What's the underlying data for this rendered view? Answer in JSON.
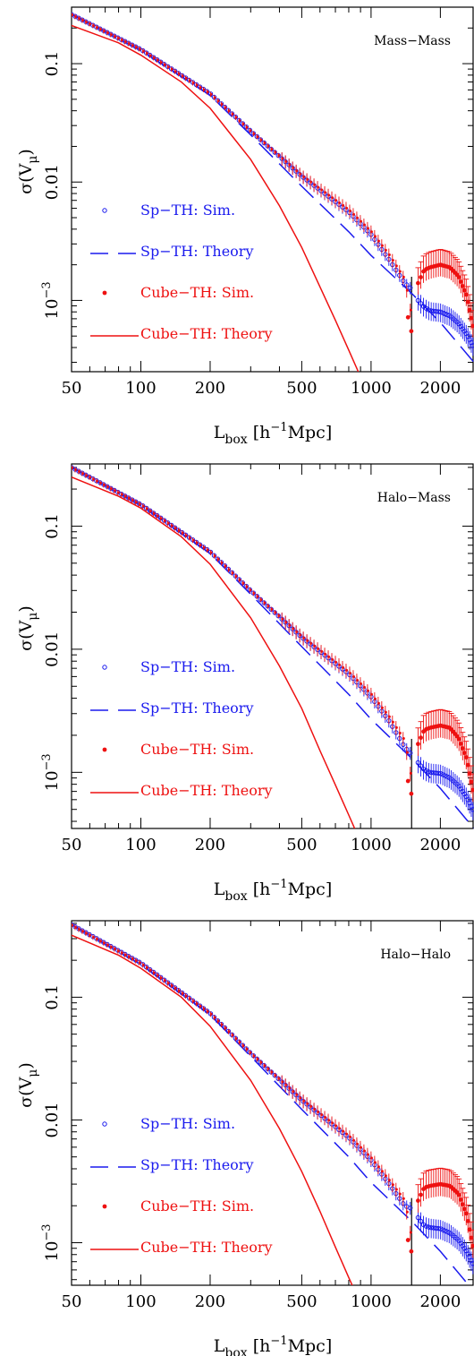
{
  "figure": {
    "xlabel": {
      "main": "L",
      "sub": "box",
      "after1": " [h",
      "sup": "−1",
      "after2": "Mpc]"
    },
    "ylabel": {
      "main": "σ(V",
      "sub": "μ",
      "after": ")"
    },
    "x_ticks": [
      50,
      100,
      200,
      500,
      1000,
      2000
    ],
    "x_tick_labels": [
      "50",
      "100",
      "200",
      "500",
      "1000",
      "2000"
    ],
    "y_tick_labels": {
      "p0.1": "0.1",
      "p0.01": "0.01",
      "p1e-3": {
        "base": "10",
        "exp": "−3"
      }
    },
    "colors": {
      "sp": "#1a1aee",
      "cube": "#ee1111",
      "line": "#000000"
    },
    "legend": [
      {
        "label": "Sp−TH: Sim.",
        "marker": "open-circle",
        "color": "#1a1aee"
      },
      {
        "label": "Sp−TH: Theory",
        "marker": "dashed-line",
        "color": "#1a1aee"
      },
      {
        "label": "Cube−TH: Sim.",
        "marker": "filled-circle",
        "color": "#ee1111"
      },
      {
        "label": "Cube−TH: Theory",
        "marker": "solid-line",
        "color": "#ee1111"
      }
    ]
  },
  "chart_data": [
    {
      "type": "scatter",
      "panel_label": "Mass−Mass",
      "xscale": "log",
      "yscale": "log",
      "xlim": [
        50,
        2800
      ],
      "ylim": [
        0.00025,
        0.3
      ],
      "grid": false,
      "legend_position": "lower-left",
      "vertical_line_x": 1500,
      "series": [
        {
          "name": "Sp−TH: Sim.",
          "points": [
            [
              50,
              0.26
            ],
            [
              100,
              0.132
            ],
            [
              200,
              0.056
            ],
            [
              300,
              0.027
            ],
            [
              500,
              0.0112
            ],
            [
              800,
              0.0056
            ],
            [
              1000,
              0.0036
            ],
            [
              1200,
              0.0022
            ],
            [
              1400,
              0.0014
            ],
            [
              1500,
              0.00125
            ],
            [
              1600,
              0.001
            ],
            [
              1700,
              0.00088
            ],
            [
              1800,
              0.00082
            ],
            [
              2000,
              0.0008
            ],
            [
              2200,
              0.00074
            ],
            [
              2400,
              0.00064
            ],
            [
              2600,
              0.00052
            ],
            [
              2800,
              0.0004
            ]
          ]
        },
        {
          "name": "Sp−TH: Theory",
          "points": [
            [
              50,
              0.26
            ],
            [
              100,
              0.13
            ],
            [
              200,
              0.054
            ],
            [
              300,
              0.025
            ],
            [
              500,
              0.0092
            ],
            [
              800,
              0.0038
            ],
            [
              1000,
              0.0024
            ],
            [
              1500,
              0.00115
            ],
            [
              2000,
              0.00065
            ],
            [
              2800,
              0.0003
            ]
          ]
        },
        {
          "name": "Cube−TH: Sim.",
          "points": [
            [
              50,
              0.258
            ],
            [
              100,
              0.131
            ],
            [
              200,
              0.0555
            ],
            [
              300,
              0.0268
            ],
            [
              500,
              0.0113
            ],
            [
              800,
              0.0058
            ],
            [
              1000,
              0.0038
            ],
            [
              1200,
              0.0024
            ],
            [
              1400,
              0.0015
            ],
            [
              1500,
              0.00072
            ],
            [
              1550,
              0.00055
            ],
            [
              1600,
              0.0014
            ],
            [
              1700,
              0.0018
            ],
            [
              1800,
              0.0019
            ],
            [
              2000,
              0.002
            ],
            [
              2200,
              0.0019
            ],
            [
              2400,
              0.0016
            ],
            [
              2600,
              0.0011
            ],
            [
              2800,
              0.00055
            ]
          ]
        },
        {
          "name": "Cube−TH: Theory",
          "points": [
            [
              50,
              0.21
            ],
            [
              80,
              0.15
            ],
            [
              100,
              0.118
            ],
            [
              150,
              0.07
            ],
            [
              200,
              0.042
            ],
            [
              300,
              0.0155
            ],
            [
              400,
              0.0063
            ],
            [
              500,
              0.0028
            ],
            [
              600,
              0.0013
            ],
            [
              700,
              0.00068
            ],
            [
              800,
              0.00038
            ],
            [
              880,
              0.00025
            ]
          ]
        }
      ]
    },
    {
      "type": "scatter",
      "panel_label": "Halo−Mass",
      "xscale": "log",
      "yscale": "log",
      "xlim": [
        50,
        2800
      ],
      "ylim": [
        0.00035,
        0.32
      ],
      "grid": false,
      "legend_position": "lower-left",
      "vertical_line_x": 1500,
      "series": [
        {
          "name": "Sp−TH: Sim.",
          "points": [
            [
              50,
              0.3
            ],
            [
              100,
              0.15
            ],
            [
              200,
              0.062
            ],
            [
              300,
              0.03
            ],
            [
              500,
              0.0125
            ],
            [
              800,
              0.0063
            ],
            [
              1000,
              0.0041
            ],
            [
              1200,
              0.0026
            ],
            [
              1400,
              0.0016
            ],
            [
              1500,
              0.0014
            ],
            [
              1600,
              0.0012
            ],
            [
              1700,
              0.00105
            ],
            [
              1800,
              0.001
            ],
            [
              2000,
              0.00098
            ],
            [
              2200,
              0.0009
            ],
            [
              2400,
              0.00078
            ],
            [
              2600,
              0.00063
            ],
            [
              2800,
              0.00048
            ]
          ]
        },
        {
          "name": "Sp−TH: Theory",
          "points": [
            [
              50,
              0.3
            ],
            [
              100,
              0.148
            ],
            [
              200,
              0.06
            ],
            [
              300,
              0.028
            ],
            [
              500,
              0.0105
            ],
            [
              800,
              0.0043
            ],
            [
              1000,
              0.0027
            ],
            [
              1500,
              0.0013
            ],
            [
              2000,
              0.00074
            ],
            [
              2800,
              0.00035
            ]
          ]
        },
        {
          "name": "Cube−TH: Sim.",
          "points": [
            [
              50,
              0.298
            ],
            [
              100,
              0.149
            ],
            [
              200,
              0.0615
            ],
            [
              300,
              0.0298
            ],
            [
              500,
              0.0126
            ],
            [
              800,
              0.0065
            ],
            [
              1000,
              0.0043
            ],
            [
              1200,
              0.0028
            ],
            [
              1400,
              0.0018
            ],
            [
              1500,
              0.00085
            ],
            [
              1550,
              0.00067
            ],
            [
              1600,
              0.0017
            ],
            [
              1700,
              0.0022
            ],
            [
              1800,
              0.0023
            ],
            [
              2000,
              0.0024
            ],
            [
              2200,
              0.0023
            ],
            [
              2400,
              0.0019
            ],
            [
              2600,
              0.0013
            ],
            [
              2800,
              0.00065
            ]
          ]
        },
        {
          "name": "Cube−TH: Theory",
          "points": [
            [
              50,
              0.25
            ],
            [
              80,
              0.175
            ],
            [
              100,
              0.14
            ],
            [
              150,
              0.082
            ],
            [
              200,
              0.049
            ],
            [
              300,
              0.018
            ],
            [
              400,
              0.0073
            ],
            [
              500,
              0.0033
            ],
            [
              600,
              0.0015
            ],
            [
              700,
              0.00079
            ],
            [
              800,
              0.00045
            ],
            [
              880,
              0.0003
            ]
          ]
        }
      ]
    },
    {
      "type": "scatter",
      "panel_label": "Halo−Halo",
      "xscale": "log",
      "yscale": "log",
      "xlim": [
        50,
        2800
      ],
      "ylim": [
        0.00045,
        0.42
      ],
      "grid": false,
      "legend_position": "lower-left",
      "vertical_line_x": 1500,
      "series": [
        {
          "name": "Sp−TH: Sim.",
          "points": [
            [
              50,
              0.39
            ],
            [
              100,
              0.19
            ],
            [
              200,
              0.074
            ],
            [
              300,
              0.035
            ],
            [
              500,
              0.0145
            ],
            [
              800,
              0.0072
            ],
            [
              1000,
              0.0047
            ],
            [
              1200,
              0.003
            ],
            [
              1400,
              0.002
            ],
            [
              1500,
              0.0019
            ],
            [
              1600,
              0.0016
            ],
            [
              1700,
              0.00138
            ],
            [
              1800,
              0.00133
            ],
            [
              2000,
              0.0013
            ],
            [
              2200,
              0.0012
            ],
            [
              2400,
              0.00105
            ],
            [
              2600,
              0.00085
            ],
            [
              2800,
              0.00065
            ]
          ]
        },
        {
          "name": "Sp−TH: Theory",
          "points": [
            [
              50,
              0.39
            ],
            [
              100,
              0.185
            ],
            [
              200,
              0.072
            ],
            [
              300,
              0.033
            ],
            [
              500,
              0.0122
            ],
            [
              800,
              0.005
            ],
            [
              1000,
              0.0031
            ],
            [
              1500,
              0.0015
            ],
            [
              2000,
              0.00085
            ],
            [
              2800,
              0.0004
            ]
          ]
        },
        {
          "name": "Cube−TH: Sim.",
          "points": [
            [
              50,
              0.385
            ],
            [
              100,
              0.188
            ],
            [
              200,
              0.0735
            ],
            [
              300,
              0.0348
            ],
            [
              500,
              0.0146
            ],
            [
              800,
              0.0074
            ],
            [
              1000,
              0.0049
            ],
            [
              1200,
              0.0032
            ],
            [
              1400,
              0.0022
            ],
            [
              1500,
              0.00105
            ],
            [
              1550,
              0.00085
            ],
            [
              1600,
              0.0022
            ],
            [
              1700,
              0.0028
            ],
            [
              1800,
              0.0029
            ],
            [
              2000,
              0.003
            ],
            [
              2200,
              0.0029
            ],
            [
              2400,
              0.0025
            ],
            [
              2600,
              0.0017
            ],
            [
              2800,
              0.00085
            ]
          ]
        },
        {
          "name": "Cube−TH: Theory",
          "points": [
            [
              50,
              0.32
            ],
            [
              80,
              0.22
            ],
            [
              100,
              0.172
            ],
            [
              150,
              0.1
            ],
            [
              200,
              0.058
            ],
            [
              300,
              0.021
            ],
            [
              400,
              0.0085
            ],
            [
              500,
              0.0038
            ],
            [
              600,
              0.0018
            ],
            [
              700,
              0.00092
            ],
            [
              800,
              0.00052
            ],
            [
              880,
              0.00035
            ]
          ]
        }
      ]
    }
  ]
}
